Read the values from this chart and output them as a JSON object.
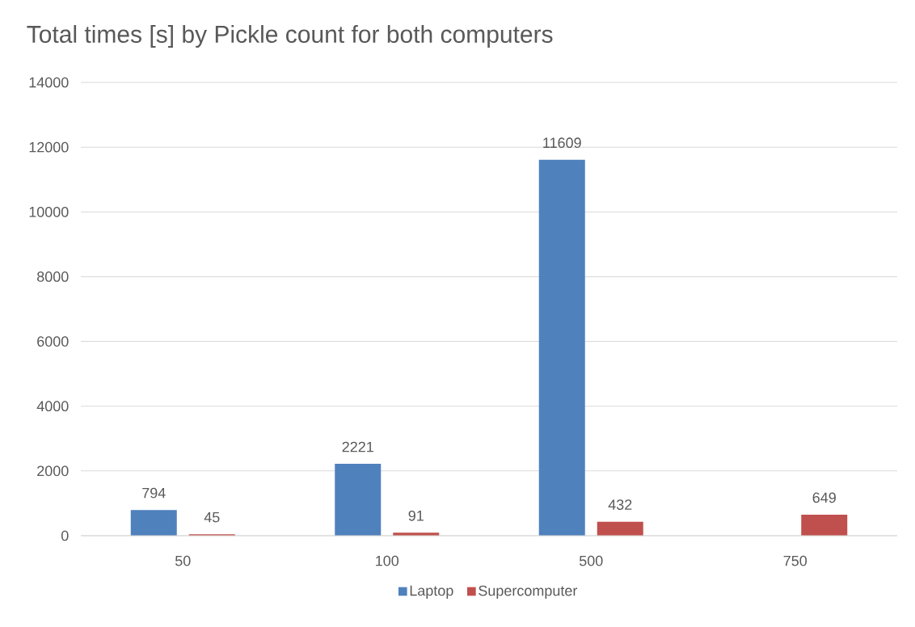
{
  "chart_data": {
    "type": "bar",
    "title": "Total times [s] by Pickle count for both computers",
    "categories": [
      "50",
      "100",
      "500",
      "750"
    ],
    "series": [
      {
        "name": "Laptop",
        "color": "#4f81bd",
        "values": [
          794,
          2221,
          11609,
          null
        ]
      },
      {
        "name": "Supercomputer",
        "color": "#c0504d",
        "values": [
          45,
          91,
          432,
          649
        ]
      }
    ],
    "ylim": [
      0,
      14000
    ],
    "yticks": [
      0,
      2000,
      4000,
      6000,
      8000,
      10000,
      12000,
      14000
    ],
    "grid": "y",
    "legend": "bottom",
    "data_labels": true
  }
}
